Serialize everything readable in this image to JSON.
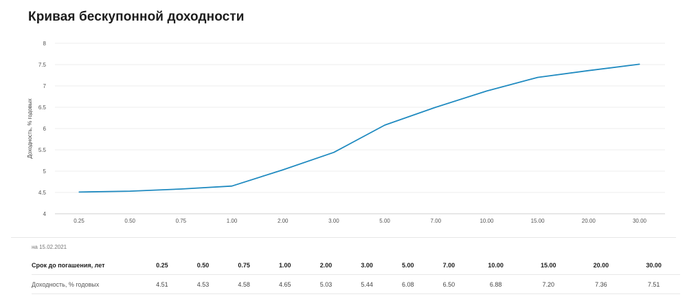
{
  "header": {
    "title": "Кривая бескупонной доходности"
  },
  "chart_data": {
    "type": "line",
    "title": "Кривая бескупонной доходности",
    "xlabel": "",
    "ylabel": "Доходность, % годовых",
    "categories": [
      "0.25",
      "0.50",
      "0.75",
      "1.00",
      "2.00",
      "3.00",
      "5.00",
      "7.00",
      "10.00",
      "15.00",
      "20.00",
      "30.00"
    ],
    "series": [
      {
        "values": [
          4.51,
          4.53,
          4.58,
          4.65,
          5.03,
          5.44,
          6.08,
          6.5,
          6.88,
          7.2,
          7.36,
          7.51
        ]
      }
    ],
    "ylim": [
      4,
      8
    ],
    "yticks": [
      "4",
      "4.5",
      "5",
      "5.5",
      "6",
      "6.5",
      "7",
      "7.5",
      "8"
    ],
    "grid": true,
    "line_color": "#1f8ac0"
  },
  "table": {
    "as_of": "на 15.02.2021",
    "maturity_label": "Срок до погашения, лет",
    "yield_label": "Доходность, % годовых",
    "maturities": [
      "0.25",
      "0.50",
      "0.75",
      "1.00",
      "2.00",
      "3.00",
      "5.00",
      "7.00",
      "10.00",
      "15.00",
      "20.00",
      "30.00"
    ],
    "yields": [
      "4.51",
      "4.53",
      "4.58",
      "4.65",
      "5.03",
      "5.44",
      "6.08",
      "6.50",
      "6.88",
      "7.20",
      "7.36",
      "7.51"
    ]
  }
}
